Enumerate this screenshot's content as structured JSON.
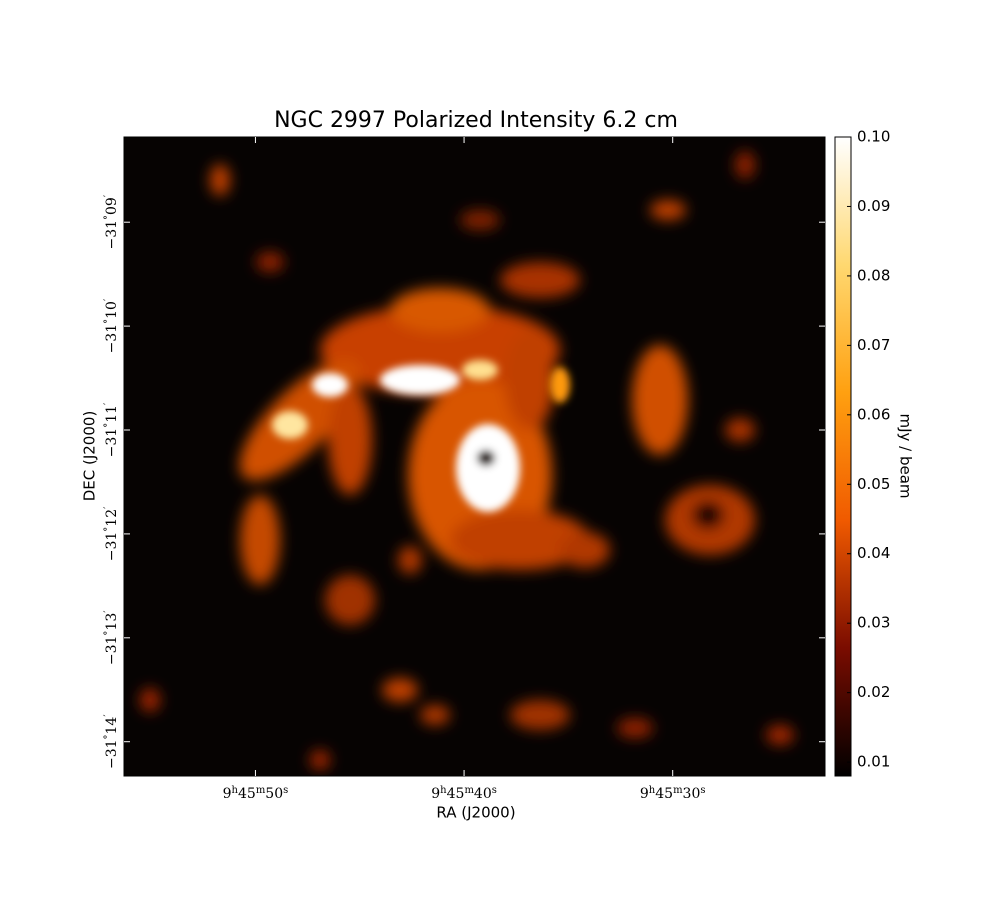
{
  "chart_data": {
    "type": "image",
    "title": "NGC 2997 Polarized Intensity 6.2 cm",
    "xlabel": "RA (J2000)",
    "ylabel": "DEC (J2000)",
    "xlim": [
      56.3,
      22.7
    ],
    "xticks": [
      {
        "value": 50,
        "label": [
          "9",
          "h",
          "45",
          "m",
          "50",
          "s"
        ]
      },
      {
        "value": 40,
        "label": [
          "9",
          "h",
          "45",
          "m",
          "40",
          "s"
        ]
      },
      {
        "value": 30,
        "label": [
          "9",
          "h",
          "45",
          "m",
          "30",
          "s"
        ]
      }
    ],
    "ylim": [
      14.33,
      8.18
    ],
    "yticks": [
      {
        "value": 9,
        "label": [
          "−31",
          "°",
          "09",
          "′"
        ]
      },
      {
        "value": 10,
        "label": [
          "−31",
          "°",
          "10",
          "′"
        ]
      },
      {
        "value": 11,
        "label": [
          "−31",
          "°",
          "11",
          "′"
        ]
      },
      {
        "value": 12,
        "label": [
          "−31",
          "°",
          "12",
          "′"
        ]
      },
      {
        "value": 13,
        "label": [
          "−31",
          "°",
          "13",
          "′"
        ]
      },
      {
        "value": 14,
        "label": [
          "−31",
          "°",
          "14",
          "′"
        ]
      }
    ],
    "colorbar": {
      "label": "mJy / beam",
      "clim": [
        0.008,
        0.1
      ],
      "ticks": [
        0.01,
        0.02,
        0.03,
        0.04,
        0.05,
        0.06,
        0.07,
        0.08,
        0.09,
        {
          "value": 0.1,
          "label": "0.10"
        }
      ],
      "colors": [
        "#000000",
        "#7a0c00",
        "#f05a00",
        "#ffa010",
        "#ffd870",
        "#ffffff"
      ]
    }
  }
}
